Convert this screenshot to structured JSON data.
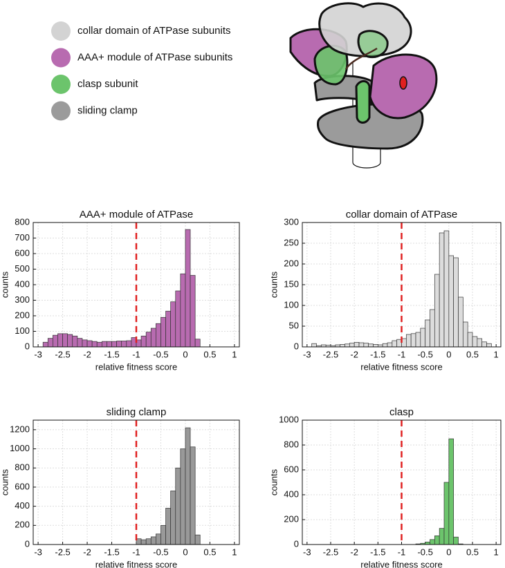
{
  "legend": [
    {
      "label": "collar domain of ATPase subunits",
      "color": "#d3d3d3"
    },
    {
      "label": "AAA+ module of ATPase subunits",
      "color": "#b86bb0"
    },
    {
      "label": "clasp subunit",
      "color": "#6cc46c"
    },
    {
      "label": "sliding clamp",
      "color": "#9b9b9b"
    }
  ],
  "chart_data": [
    {
      "type": "histogram",
      "title": "AAA+ module of ATPase",
      "x_label": "relative fitness score",
      "y_label": "counts",
      "color": "#b86bb0",
      "bins": [
        -2.9,
        -2.8,
        -2.7,
        -2.6,
        -2.5,
        -2.4,
        -2.3,
        -2.2,
        -2.1,
        -2.0,
        -1.9,
        -1.8,
        -1.7,
        -1.6,
        -1.5,
        -1.4,
        -1.3,
        -1.2,
        -1.1,
        -1.0,
        -0.9,
        -0.8,
        -0.7,
        -0.6,
        -0.5,
        -0.4,
        -0.3,
        -0.2,
        -0.1,
        0.0,
        0.1,
        0.2,
        0.3
      ],
      "counts": [
        30,
        55,
        75,
        85,
        85,
        80,
        70,
        55,
        45,
        40,
        35,
        30,
        35,
        35,
        35,
        38,
        38,
        40,
        60,
        45,
        70,
        95,
        120,
        150,
        190,
        230,
        290,
        360,
        470,
        755,
        460,
        50
      ],
      "threshold": -1,
      "threshold_color": "#e02020",
      "xlim": [
        -3.1,
        1.1
      ],
      "xticks": [
        -3,
        -2.5,
        -2,
        -1.5,
        -1,
        -0.5,
        0,
        0.5,
        1
      ],
      "ylim": [
        0,
        800
      ],
      "yticks": [
        0,
        100,
        200,
        300,
        400,
        500,
        600,
        700,
        800
      ],
      "grid": true
    },
    {
      "type": "histogram",
      "title": "collar domain of ATPase",
      "x_label": "relative fitness score",
      "y_label": "counts",
      "color": "#dcdcdc",
      "bins": [
        -2.9,
        -2.8,
        -2.7,
        -2.6,
        -2.5,
        -2.4,
        -2.3,
        -2.2,
        -2.1,
        -2.0,
        -1.9,
        -1.8,
        -1.7,
        -1.6,
        -1.5,
        -1.4,
        -1.3,
        -1.2,
        -1.1,
        -1.0,
        -0.9,
        -0.8,
        -0.7,
        -0.6,
        -0.5,
        -0.4,
        -0.3,
        -0.2,
        -0.1,
        0.0,
        0.1,
        0.2,
        0.3,
        0.4,
        0.5,
        0.6,
        0.7,
        0.8,
        0.9
      ],
      "counts": [
        8,
        3,
        5,
        4,
        3,
        5,
        6,
        7,
        9,
        11,
        10,
        9,
        7,
        6,
        5,
        8,
        10,
        15,
        18,
        20,
        30,
        32,
        35,
        45,
        65,
        90,
        175,
        275,
        280,
        220,
        215,
        120,
        60,
        35,
        25,
        20,
        12,
        8
      ],
      "threshold": -1,
      "threshold_color": "#e02020",
      "xlim": [
        -3.1,
        1.1
      ],
      "xticks": [
        -3,
        -2.5,
        -2,
        -1.5,
        -1,
        -0.5,
        0,
        0.5,
        1
      ],
      "ylim": [
        0,
        300
      ],
      "yticks": [
        0,
        50,
        100,
        150,
        200,
        250,
        300
      ],
      "grid": true
    },
    {
      "type": "histogram",
      "title": "sliding clamp",
      "x_label": "relative fitness score",
      "y_label": "counts",
      "color": "#999999",
      "bins": [
        -1.0,
        -0.9,
        -0.8,
        -0.7,
        -0.6,
        -0.5,
        -0.4,
        -0.3,
        -0.2,
        -0.1,
        0.0,
        0.1,
        0.2,
        0.3
      ],
      "counts": [
        60,
        50,
        60,
        80,
        110,
        200,
        380,
        560,
        800,
        1000,
        1220,
        1020,
        100
      ],
      "threshold": -1,
      "threshold_color": "#e02020",
      "xlim": [
        -3.1,
        1.1
      ],
      "xticks": [
        -3,
        -2.5,
        -2,
        -1.5,
        -1,
        -0.5,
        0,
        0.5,
        1
      ],
      "ylim": [
        0,
        1300
      ],
      "yticks": [
        0,
        200,
        400,
        600,
        800,
        1000,
        1200
      ],
      "grid": true
    },
    {
      "type": "histogram",
      "title": "clasp",
      "x_label": "relative fitness score",
      "y_label": "counts",
      "color": "#6cc46c",
      "bins": [
        -0.7,
        -0.6,
        -0.5,
        -0.4,
        -0.3,
        -0.2,
        -0.1,
        0.0,
        0.1,
        0.2,
        0.3
      ],
      "counts": [
        5,
        10,
        20,
        40,
        70,
        130,
        500,
        850,
        60,
        5
      ],
      "threshold": -1,
      "threshold_color": "#e02020",
      "xlim": [
        -3.1,
        1.1
      ],
      "xticks": [
        -3,
        -2.5,
        -2,
        -1.5,
        -1,
        -0.5,
        0,
        0.5,
        1
      ],
      "ylim": [
        0,
        1000
      ],
      "yticks": [
        0,
        200,
        400,
        600,
        800,
        1000
      ],
      "grid": true
    }
  ]
}
